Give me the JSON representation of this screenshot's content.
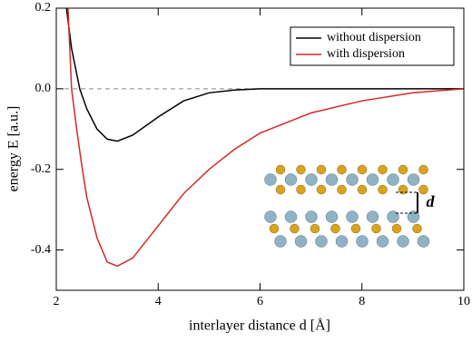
{
  "chart_data": {
    "type": "line",
    "xlabel": "interlayer distance d [Å]",
    "ylabel": "energy E [a.u.]",
    "xlim": [
      2,
      10
    ],
    "xticks": [
      2,
      4,
      6,
      8,
      10
    ],
    "ylim": [
      -0.5,
      0.2
    ],
    "yticks": [
      {
        "value": -0.4,
        "label": "-0.4"
      },
      {
        "value": -0.2,
        "label": "-0.2"
      },
      {
        "value": 0,
        "label": "0.0"
      },
      0.2
    ],
    "reference_line": 0,
    "legend": "upper right",
    "inset_label": "d",
    "series": [
      {
        "name": "without dispersion",
        "color": "#000000",
        "x": [
          2.2,
          2.3,
          2.46,
          2.6,
          2.8,
          3.0,
          3.2,
          3.5,
          4.0,
          4.5,
          5.0,
          5.5,
          6.0,
          7.0,
          8.0,
          9.0,
          10.0
        ],
        "values": [
          0.2,
          0.1,
          0,
          -0.05,
          -0.1,
          -0.125,
          -0.13,
          -0.115,
          -0.07,
          -0.03,
          -0.01,
          -0.003,
          0,
          0,
          0,
          0,
          0
        ]
      },
      {
        "name": "with dispersion",
        "color": "#d62728",
        "x": [
          2.23,
          2.3,
          2.4,
          2.5,
          2.6,
          2.8,
          3.0,
          3.2,
          3.5,
          3.75,
          4.0,
          4.5,
          5.0,
          5.5,
          6.0,
          7.0,
          8.0,
          9.0,
          10.0
        ],
        "values": [
          0.2,
          0.0,
          -0.1,
          -0.19,
          -0.27,
          -0.37,
          -0.43,
          -0.44,
          -0.42,
          -0.38,
          -0.34,
          -0.26,
          -0.2,
          -0.15,
          -0.11,
          -0.06,
          -0.03,
          -0.01,
          0
        ]
      }
    ]
  }
}
